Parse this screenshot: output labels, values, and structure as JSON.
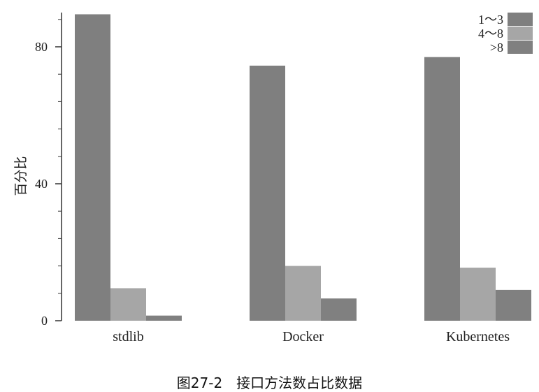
{
  "caption": "图27-2　接口方法数占比数据",
  "chart_data": {
    "type": "bar",
    "categories": [
      "stdlib",
      "Docker",
      "Kubernetes"
    ],
    "series": [
      {
        "name": "1～3",
        "values": [
          89.5,
          74.5,
          77
        ],
        "color": "#7f7f7f"
      },
      {
        "name": "4～8",
        "values": [
          9.5,
          16,
          15.5
        ],
        "color": "#a6a6a6"
      },
      {
        "name": ">8",
        "values": [
          1.5,
          6.5,
          9
        ],
        "color": "#808080"
      }
    ],
    "ylabel": "百分比",
    "xlabel": "",
    "yticks": [
      0,
      40,
      80
    ],
    "ylim": [
      0,
      90
    ],
    "legend": "top-right",
    "grid": false
  }
}
